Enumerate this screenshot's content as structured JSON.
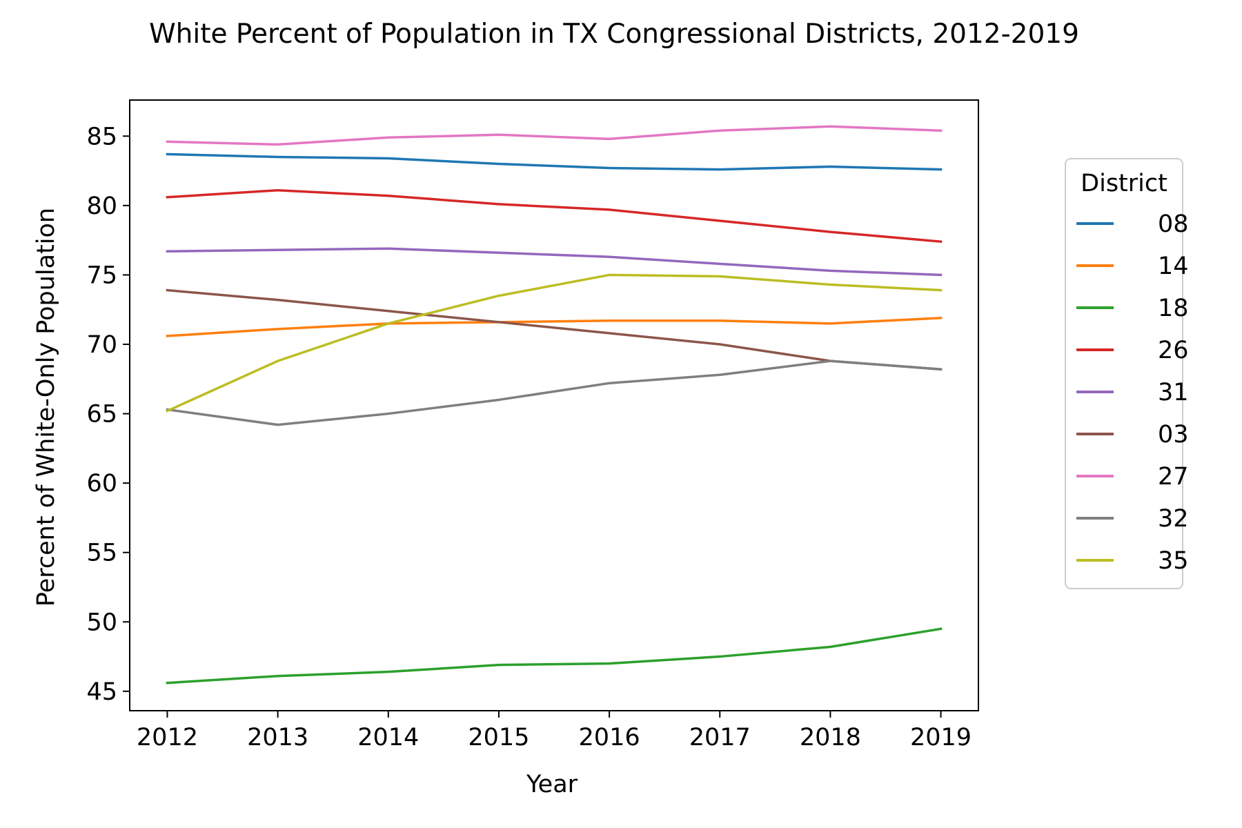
{
  "chart_data": {
    "type": "line",
    "title": "White Percent of Population in TX Congressional Districts, 2012-2019",
    "xlabel": "Year",
    "ylabel": "Percent of White-Only Population",
    "x": [
      "2012",
      "2013",
      "2014",
      "2015",
      "2016",
      "2017",
      "2018",
      "2019"
    ],
    "xlim": [
      2011.66,
      2019.34
    ],
    "ylim": [
      43.6,
      87.6
    ],
    "yticks": [
      45,
      50,
      55,
      60,
      65,
      70,
      75,
      80,
      85
    ],
    "grid": false,
    "legend": {
      "title": "District",
      "placement": "outside-right"
    },
    "series": [
      {
        "name": "08",
        "color": "#1f77b4",
        "values": [
          83.7,
          83.5,
          83.4,
          83.0,
          82.7,
          82.6,
          82.8,
          82.6
        ]
      },
      {
        "name": "14",
        "color": "#ff7f0e",
        "values": [
          70.6,
          71.1,
          71.5,
          71.6,
          71.7,
          71.7,
          71.5,
          71.9
        ]
      },
      {
        "name": "18",
        "color": "#2ca02c",
        "values": [
          45.6,
          46.1,
          46.4,
          46.9,
          47.0,
          47.5,
          48.2,
          49.5
        ]
      },
      {
        "name": "26",
        "color": "#d62728",
        "values": [
          80.6,
          81.1,
          80.7,
          80.1,
          79.7,
          78.9,
          78.1,
          77.4
        ]
      },
      {
        "name": "31",
        "color": "#9467bd",
        "values": [
          76.7,
          76.8,
          76.9,
          76.6,
          76.3,
          75.8,
          75.3,
          75.0
        ]
      },
      {
        "name": "03",
        "color": "#8c564b",
        "values": [
          73.9,
          73.2,
          72.4,
          71.6,
          70.8,
          70.0,
          68.8,
          68.2
        ]
      },
      {
        "name": "27",
        "color": "#e377c2",
        "values": [
          84.6,
          84.4,
          84.9,
          85.1,
          84.8,
          85.4,
          85.7,
          85.4
        ]
      },
      {
        "name": "32",
        "color": "#7f7f7f",
        "values": [
          65.3,
          64.2,
          65.0,
          66.0,
          67.2,
          67.8,
          68.8,
          68.2
        ]
      },
      {
        "name": "35",
        "color": "#bcbd22",
        "values": [
          65.2,
          68.8,
          71.5,
          73.5,
          75.0,
          74.9,
          74.3,
          73.9
        ]
      }
    ]
  }
}
